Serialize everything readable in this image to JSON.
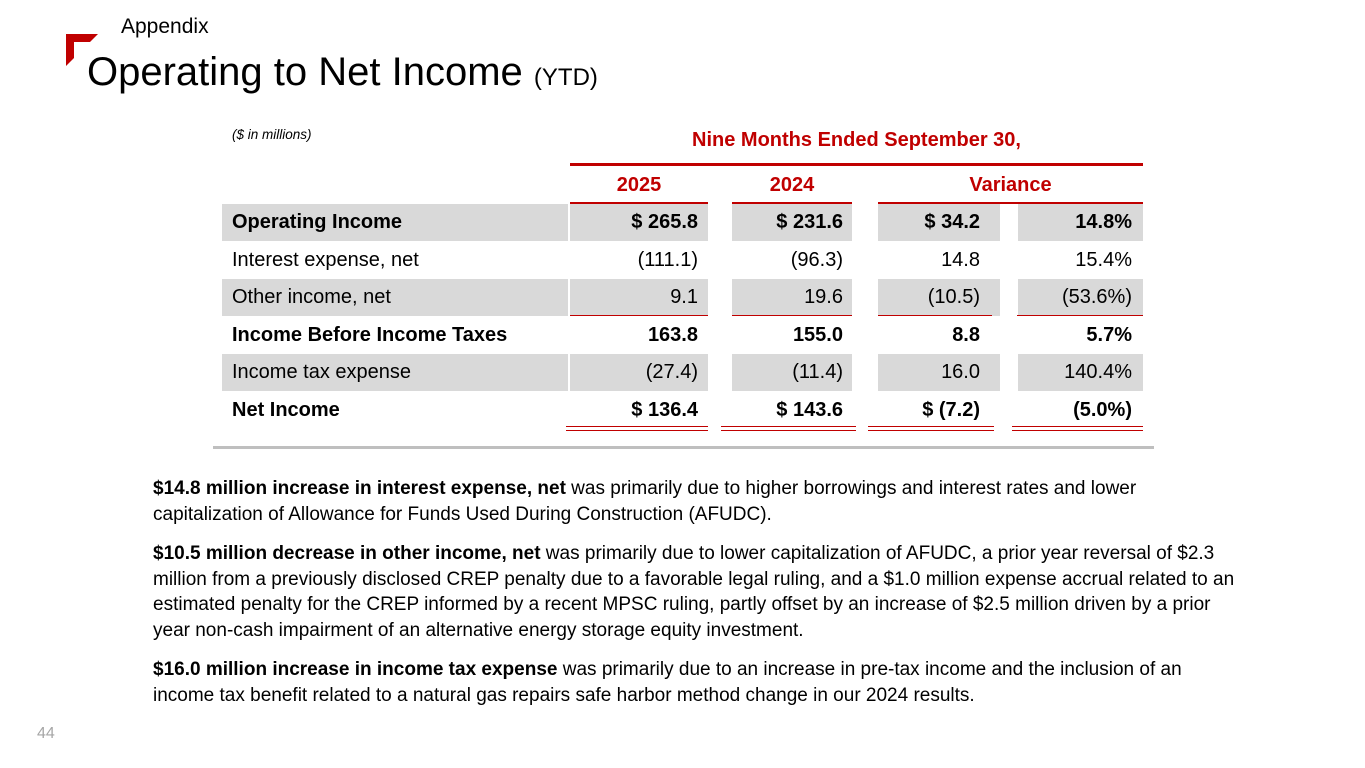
{
  "header": {
    "section": "Appendix",
    "title": "Operating to Net Income",
    "title_suffix": "(YTD)"
  },
  "table": {
    "units_note": "($ in millions)",
    "period_header": "Nine Months Ended September 30,",
    "columns": {
      "y2025": "2025",
      "y2024": "2024",
      "variance": "Variance"
    },
    "rows": [
      {
        "label": "Operating Income",
        "y2025": "$ 265.8",
        "y2024": "$ 231.6",
        "var_amt": "$ 34.2",
        "var_pct": "14.8%"
      },
      {
        "label": "Interest expense, net",
        "y2025": "(111.1)",
        "y2024": "(96.3)",
        "var_amt": "14.8",
        "var_pct": "15.4%"
      },
      {
        "label": "Other income, net",
        "y2025": "9.1",
        "y2024": "19.6",
        "var_amt": "(10.5)",
        "var_pct": "(53.6%)"
      },
      {
        "label": "Income Before Income Taxes",
        "y2025": "163.8",
        "y2024": "155.0",
        "var_amt": "8.8",
        "var_pct": "5.7%"
      },
      {
        "label": "Income tax expense",
        "y2025": "(27.4)",
        "y2024": "(11.4)",
        "var_amt": "16.0",
        "var_pct": "140.4%"
      },
      {
        "label": "Net Income",
        "y2025": "$ 136.4",
        "y2024": "$ 143.6",
        "var_amt": "$  (7.2)",
        "var_pct": "(5.0%)"
      }
    ]
  },
  "notes": [
    {
      "bold": "$14.8 million increase in interest expense, net",
      "text": " was primarily due to higher borrowings and interest rates and lower capitalization of Allowance for Funds Used During Construction (AFUDC)."
    },
    {
      "bold": "$10.5 million decrease in other income, net",
      "text": " was primarily due to lower capitalization of AFUDC, a prior year reversal of $2.3 million from a previously disclosed CREP penalty due to a favorable legal ruling, and a $1.0 million expense accrual related to an estimated penalty for the CREP informed by a recent MPSC ruling, partly offset by an increase of $2.5 million driven by a prior year non-cash impairment of an alternative energy storage equity investment."
    },
    {
      "bold": "$16.0 million increase in income tax expense",
      "text": " was primarily due to an increase in pre-tax income and the inclusion of an income tax benefit related to a natural gas repairs safe harbor method change in our 2024 results."
    }
  ],
  "footer": {
    "page_number": "44"
  },
  "colors": {
    "accent": "#c00000",
    "shade": "#d9d9d9"
  }
}
